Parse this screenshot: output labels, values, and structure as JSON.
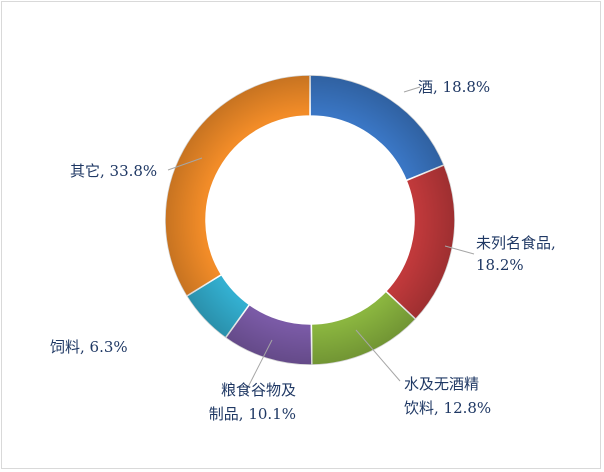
{
  "chart_data": {
    "type": "pie",
    "variant": "doughnut",
    "title": "",
    "unit": "%",
    "slices": [
      {
        "label": "酒",
        "value": 18.8,
        "color": "#3a76c4",
        "text_lines": [
          "酒, 18.8%"
        ]
      },
      {
        "label": "未列名食品",
        "value": 18.2,
        "color": "#c0393b",
        "text_lines": [
          "未列名食品,",
          "18.2%"
        ]
      },
      {
        "label": "水及无酒精饮料",
        "value": 12.8,
        "color": "#8ab53f",
        "text_lines": [
          "水及无酒精",
          "饮料, 12.8%"
        ]
      },
      {
        "label": "粮食谷物及制品",
        "value": 10.1,
        "color": "#7a5aa6",
        "text_lines": [
          "粮食谷物及",
          "制品, 10.1%"
        ]
      },
      {
        "label": "饲料",
        "value": 6.3,
        "color": "#33afd0",
        "text_lines": [
          "饲料, 6.3%"
        ]
      },
      {
        "label": "其它",
        "value": 33.8,
        "color": "#f28c28",
        "text_lines": [
          "其它, 33.8%"
        ]
      }
    ],
    "legend": "none",
    "start_angle": "12 o'clock",
    "direction": "clockwise"
  }
}
